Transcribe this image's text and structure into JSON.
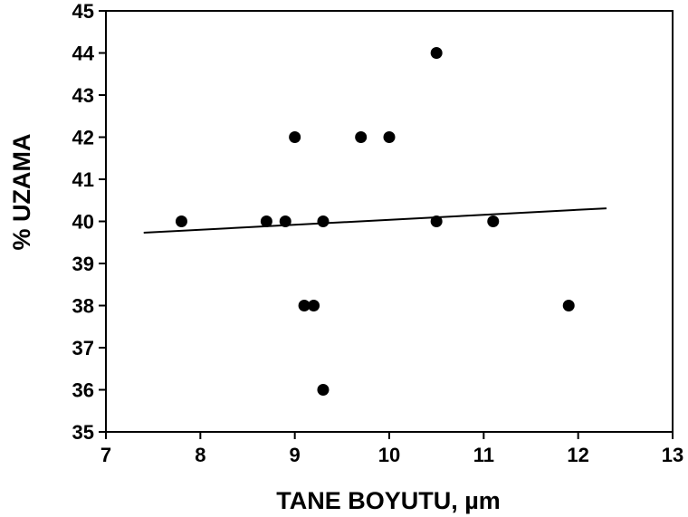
{
  "chart_data": {
    "type": "scatter",
    "xlabel": "TANE BOYUTU, µm",
    "ylabel": "%  UZAMA",
    "xlim": [
      7,
      13
    ],
    "ylim": [
      35,
      45
    ],
    "x_ticks": [
      7,
      8,
      9,
      10,
      11,
      12,
      13
    ],
    "y_ticks": [
      35,
      36,
      37,
      38,
      39,
      40,
      41,
      42,
      43,
      44,
      45
    ],
    "grid": false,
    "legend": "none",
    "points": [
      {
        "x": 7.8,
        "y": 40
      },
      {
        "x": 8.7,
        "y": 40
      },
      {
        "x": 8.9,
        "y": 40
      },
      {
        "x": 9.0,
        "y": 42
      },
      {
        "x": 9.1,
        "y": 38
      },
      {
        "x": 9.2,
        "y": 38
      },
      {
        "x": 9.3,
        "y": 40
      },
      {
        "x": 9.3,
        "y": 36
      },
      {
        "x": 9.7,
        "y": 42
      },
      {
        "x": 10.0,
        "y": 42
      },
      {
        "x": 10.5,
        "y": 44
      },
      {
        "x": 10.5,
        "y": 40
      },
      {
        "x": 11.1,
        "y": 40
      },
      {
        "x": 11.9,
        "y": 38
      }
    ],
    "trendline": {
      "x": [
        7.4,
        12.3
      ],
      "y": [
        39.73,
        40.31
      ]
    },
    "colors": {
      "marker": "#000000",
      "line": "#000000",
      "axis": "#000000"
    }
  }
}
